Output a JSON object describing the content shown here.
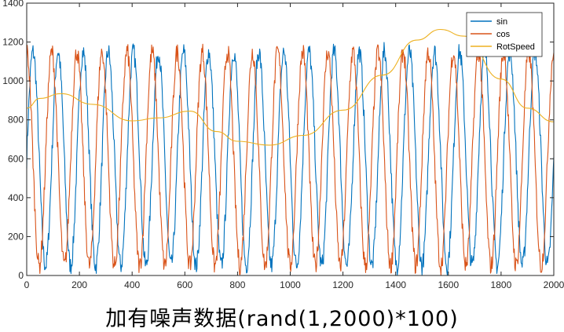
{
  "chart_data": {
    "type": "line",
    "title": "",
    "xlabel": "",
    "ylabel": "",
    "caption": "加有噪声数据(rand(1,2000)*100)",
    "xlim": [
      0,
      2000
    ],
    "ylim": [
      0,
      1400
    ],
    "x_ticks": [
      0,
      200,
      400,
      600,
      800,
      1000,
      1200,
      1400,
      1600,
      1800,
      2000
    ],
    "y_ticks": [
      0,
      200,
      400,
      600,
      800,
      1000,
      1200,
      1400
    ],
    "grid": false,
    "legend_position": "top-right",
    "signal_model": {
      "offset": 600,
      "amplitude": 550,
      "cycles": 21,
      "noise_amplitude": 50
    },
    "series": [
      {
        "name": "sin",
        "color": "#0072BD"
      },
      {
        "name": "cos",
        "color": "#D95319"
      },
      {
        "name": "RotSpeed",
        "color": "#EDB120",
        "x": [
          0,
          50,
          130,
          250,
          400,
          500,
          620,
          720,
          800,
          920,
          1050,
          1200,
          1350,
          1480,
          1570,
          1660,
          1800,
          1900,
          2000
        ],
        "values": [
          860,
          910,
          935,
          880,
          795,
          810,
          845,
          740,
          690,
          670,
          720,
          850,
          1030,
          1210,
          1265,
          1230,
          1010,
          860,
          790
        ]
      }
    ]
  }
}
